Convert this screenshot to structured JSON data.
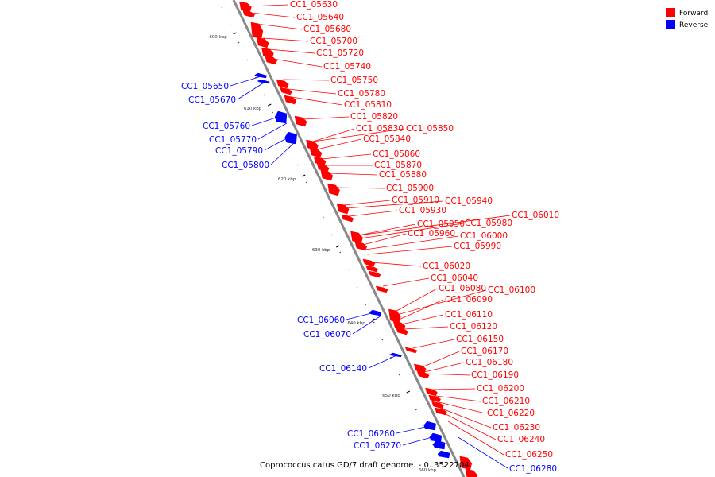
{
  "caption": "Coprococcus catus GD/7 draft genome. - 0..3522704",
  "colors": {
    "forward": "#ff0000",
    "reverse": "#0000ff",
    "backbone": "#888888"
  },
  "legend": [
    {
      "label": "Forward",
      "strand": "forward"
    },
    {
      "label": "Reverse",
      "strand": "reverse"
    }
  ],
  "scale_ticks": [
    "600 kbp",
    "610 kbp",
    "620 kbp",
    "630 kbp",
    "640 kbp",
    "650 kbp",
    "660 kbp"
  ],
  "forward_genes": [
    "CC1_05630",
    "CC1_05640",
    "CC1_05680",
    "CC1_05700",
    "CC1_05720",
    "CC1_05740",
    "CC1_05750",
    "CC1_05780",
    "CC1_05810",
    "CC1_05820",
    "CC1_05830",
    "CC1_05850",
    "CC1_05840",
    "CC1_05860",
    "CC1_05870",
    "CC1_05880",
    "CC1_05900",
    "CC1_05910",
    "CC1_05940",
    "CC1_05930",
    "CC1_06010",
    "CC1_05950",
    "CC1_05980",
    "CC1_05960",
    "CC1_06000",
    "CC1_05990",
    "CC1_06020",
    "CC1_06040",
    "CC1_06080",
    "CC1_06100",
    "CC1_06090",
    "CC1_06110",
    "CC1_06120",
    "CC1_06150",
    "CC1_06170",
    "CC1_06180",
    "CC1_06190",
    "CC1_06200",
    "CC1_06210",
    "CC1_06220",
    "CC1_06230",
    "CC1_06240",
    "CC1_06250"
  ],
  "reverse_genes": [
    "CC1_05650",
    "CC1_05670",
    "CC1_05760",
    "CC1_05770",
    "CC1_05790",
    "CC1_05800",
    "CC1_06060",
    "CC1_06070",
    "CC1_06140",
    "CC1_06260",
    "CC1_06270",
    "CC1_06280"
  ]
}
